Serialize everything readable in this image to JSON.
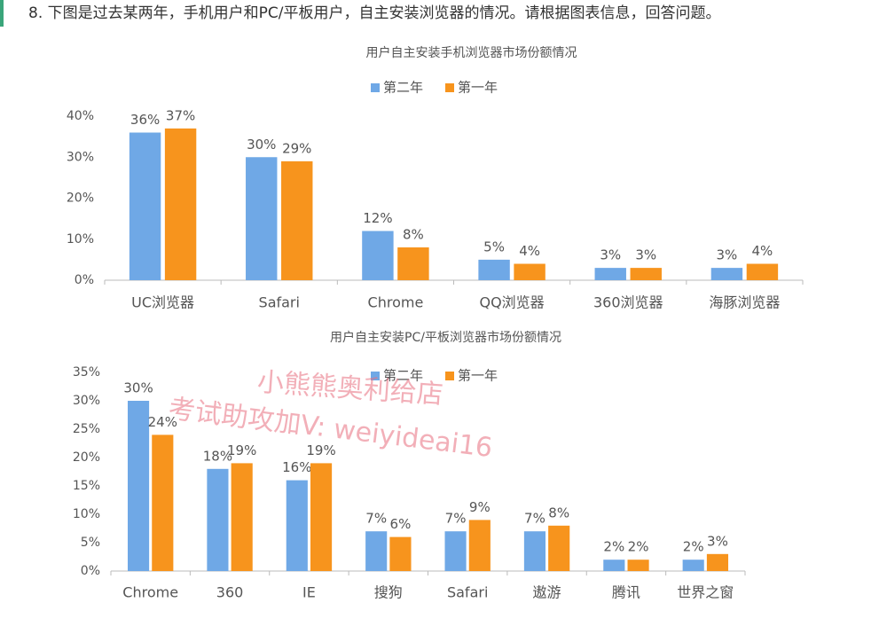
{
  "question": "8.  下图是过去某两年，手机用户和PC/平板用户，自主安装浏览器的情况。请根据图表信息，回答问题。",
  "watermarks": [
    "小熊熊奥利给店",
    "考试助攻加V: weiyideai16"
  ],
  "chart_data": [
    {
      "type": "bar",
      "title": "用户自主安装手机浏览器市场份额情况",
      "categories": [
        "UC浏览器",
        "Safari",
        "Chrome",
        "QQ浏览器",
        "360浏览器",
        "海豚浏览器"
      ],
      "series": [
        {
          "name": "第二年",
          "color": "#6fa8e6",
          "values": [
            36,
            30,
            12,
            5,
            3,
            3
          ],
          "value_labels": [
            "36%",
            "30%",
            "12%",
            "5%",
            "3%",
            "3%"
          ]
        },
        {
          "name": "第一年",
          "color": "#f7941d",
          "values": [
            37,
            29,
            8,
            4,
            3,
            4
          ],
          "value_labels": [
            "37%",
            "29%",
            "8%",
            "4%",
            "3%",
            "4%"
          ]
        }
      ],
      "ylim": [
        0,
        40
      ],
      "yticks": [
        {
          "value": 0,
          "label": "0%"
        },
        {
          "value": 10,
          "label": "10%"
        },
        {
          "value": 20,
          "label": "20%"
        },
        {
          "value": 30,
          "label": "30%"
        },
        {
          "value": 40,
          "label": "40%"
        }
      ],
      "grid": false,
      "legend": "top"
    },
    {
      "type": "bar",
      "title": "用户自主安装PC/平板浏览器市场份额情况",
      "categories": [
        "Chrome",
        "360",
        "IE",
        "搜狗",
        "Safari",
        "遨游",
        "腾讯",
        "世界之窗"
      ],
      "series": [
        {
          "name": "第二年",
          "color": "#6fa8e6",
          "values": [
            30,
            18,
            16,
            7,
            7,
            7,
            2,
            2
          ],
          "value_labels": [
            "30%",
            "18%",
            "16%",
            "7%",
            "7%",
            "7%",
            "2%",
            "2%"
          ]
        },
        {
          "name": "第一年",
          "color": "#f7941d",
          "values": [
            24,
            19,
            19,
            6,
            9,
            8,
            2,
            3
          ],
          "value_labels": [
            "24%",
            "19%",
            "19%",
            "6%",
            "9%",
            "8%",
            "2%",
            "3%"
          ]
        }
      ],
      "ylim": [
        0,
        35
      ],
      "yticks": [
        {
          "value": 0,
          "label": "0%"
        },
        {
          "value": 5,
          "label": "5%"
        },
        {
          "value": 10,
          "label": "10%"
        },
        {
          "value": 15,
          "label": "15%"
        },
        {
          "value": 20,
          "label": "20%"
        },
        {
          "value": 25,
          "label": "25%"
        },
        {
          "value": 30,
          "label": "30%"
        },
        {
          "value": 35,
          "label": "35%"
        }
      ],
      "grid": false,
      "legend": "top"
    }
  ]
}
